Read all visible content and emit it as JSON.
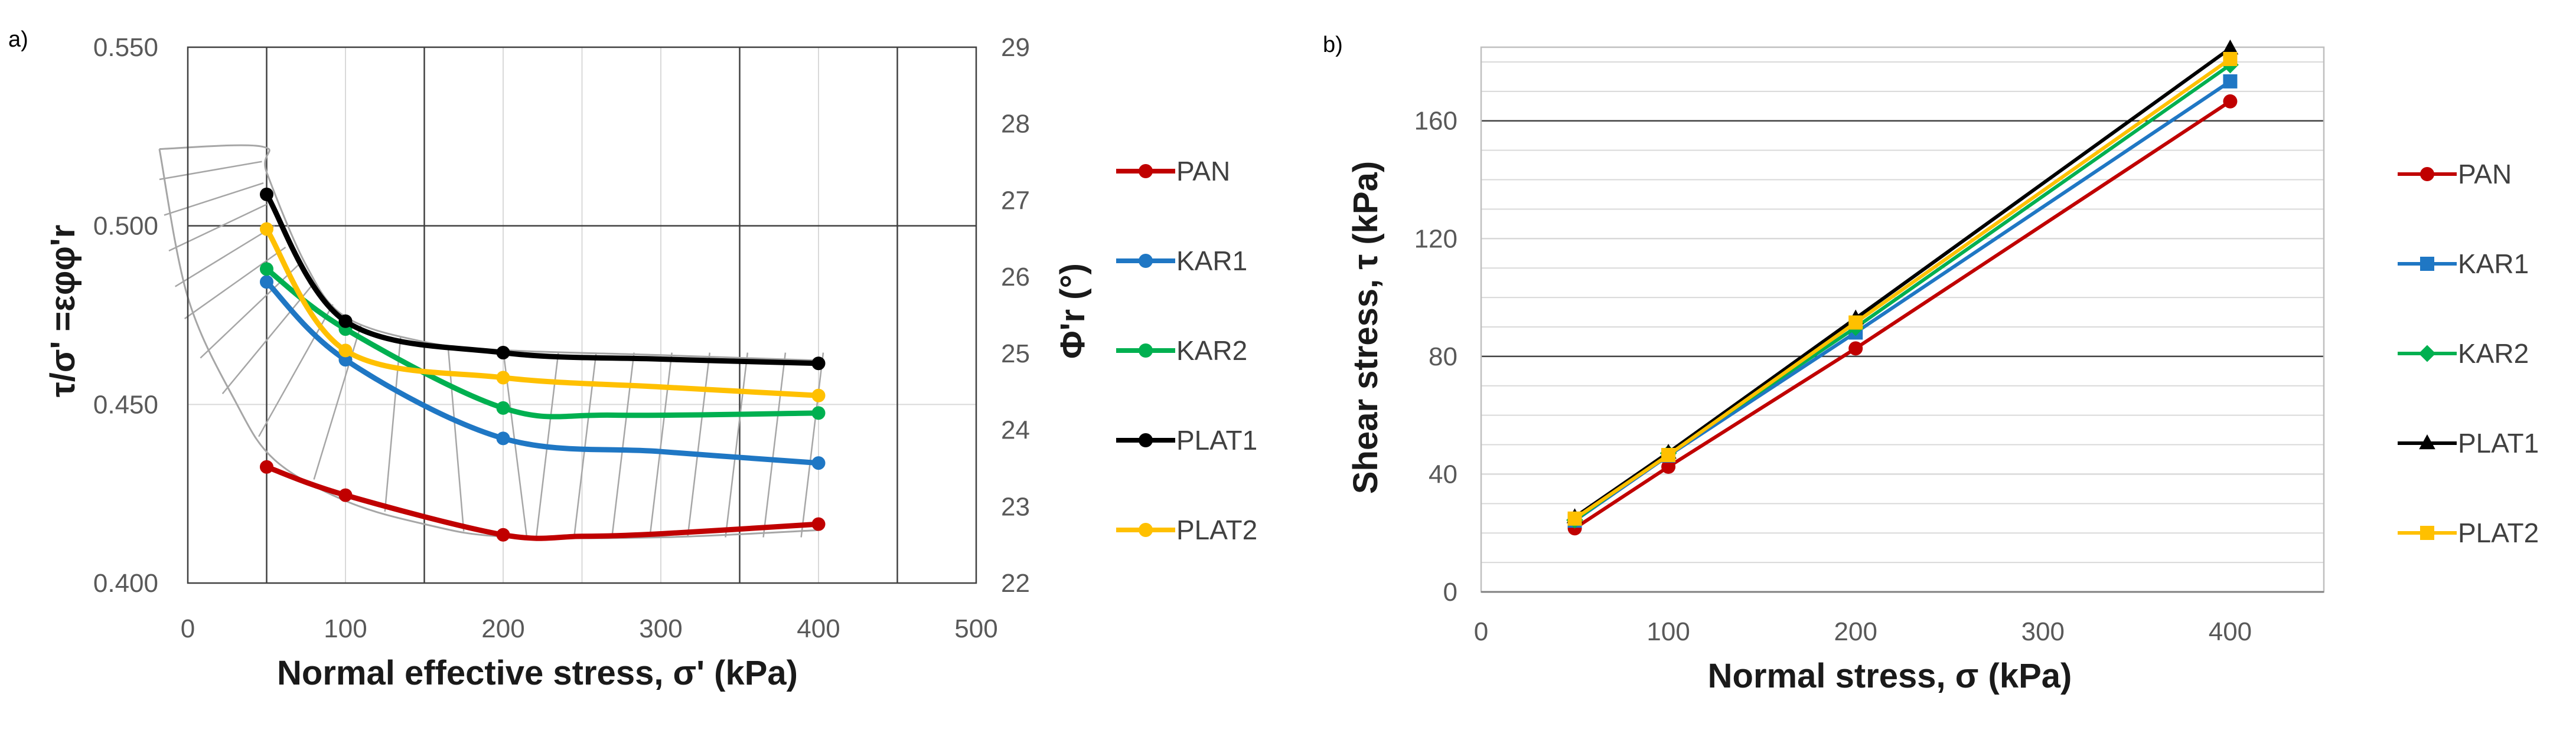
{
  "chart_data": [
    {
      "type": "line",
      "panel_label": "a)",
      "title": "",
      "xlabel": "Normal effective stress, σ' (kPa)",
      "ylabel": "τ/σ' =εφφ'r",
      "y2label": "Φ'r (°)",
      "xlim": [
        0,
        500
      ],
      "ylim": [
        0.4,
        0.55
      ],
      "y2lim": [
        22,
        29
      ],
      "xticks": [
        "0",
        "100",
        "200",
        "300",
        "400",
        "500"
      ],
      "yticks": [
        "0.400",
        "0.450",
        "0.500",
        "0.550"
      ],
      "y2ticks": [
        "22",
        "23",
        "24",
        "25",
        "26",
        "27",
        "28",
        "29"
      ],
      "grid": true,
      "legend_position": "right",
      "x": [
        50,
        100,
        200,
        400
      ],
      "series": [
        {
          "name": "PAN",
          "color": "#c00000",
          "values": [
            0.4325,
            0.4246,
            0.4135,
            0.4165
          ],
          "mid": [
            [
              250,
              0.4131
            ],
            [
              300,
              0.4138
            ]
          ]
        },
        {
          "name": "KAR1",
          "color": "#1f77c4",
          "values": [
            0.4843,
            0.4625,
            0.4405,
            0.4336
          ],
          "mid": [
            [
              300,
              0.4368
            ]
          ]
        },
        {
          "name": "KAR2",
          "color": "#00b050",
          "values": [
            0.4879,
            0.4711,
            0.449,
            0.4476
          ],
          "mid": [
            [
              270,
              0.447
            ]
          ]
        },
        {
          "name": "PLAT1",
          "color": "#000000",
          "values": [
            0.5088,
            0.4733,
            0.4645,
            0.4615
          ],
          "mid": [
            [
              300,
              0.4627
            ]
          ]
        },
        {
          "name": "PLAT2",
          "color": "#ffc000",
          "values": [
            0.4991,
            0.4651,
            0.4575,
            0.4525
          ],
          "mid": [
            [
              300,
              0.4549
            ]
          ]
        }
      ]
    },
    {
      "type": "line",
      "panel_label": "b)",
      "title": "",
      "xlabel": "Normal stress, σ (kPa)",
      "ylabel": "Shear stress, τ (kPa)",
      "xlim": [
        0,
        450
      ],
      "ylim": [
        0,
        185
      ],
      "xticks": [
        "0",
        "100",
        "200",
        "300",
        "400"
      ],
      "yticks": [
        "0",
        "40",
        "80",
        "120",
        "160"
      ],
      "grid": true,
      "legend_position": "right",
      "x": [
        50,
        100,
        200,
        400
      ],
      "series": [
        {
          "name": "PAN",
          "color": "#c00000",
          "marker": "circle",
          "values": [
            21.6,
            42.5,
            82.7,
            166.6
          ]
        },
        {
          "name": "KAR1",
          "color": "#1f77c4",
          "marker": "square",
          "values": [
            24.2,
            46.3,
            88.1,
            173.4
          ]
        },
        {
          "name": "KAR2",
          "color": "#00b050",
          "marker": "diamond",
          "values": [
            24.4,
            47.1,
            89.8,
            179.0
          ]
        },
        {
          "name": "PLAT1",
          "color": "#000000",
          "marker": "triangle",
          "values": [
            25.4,
            47.3,
            92.9,
            184.6
          ]
        },
        {
          "name": "PLAT2",
          "color": "#ffc000",
          "marker": "square",
          "values": [
            24.9,
            46.5,
            91.5,
            181.0
          ]
        }
      ]
    }
  ]
}
